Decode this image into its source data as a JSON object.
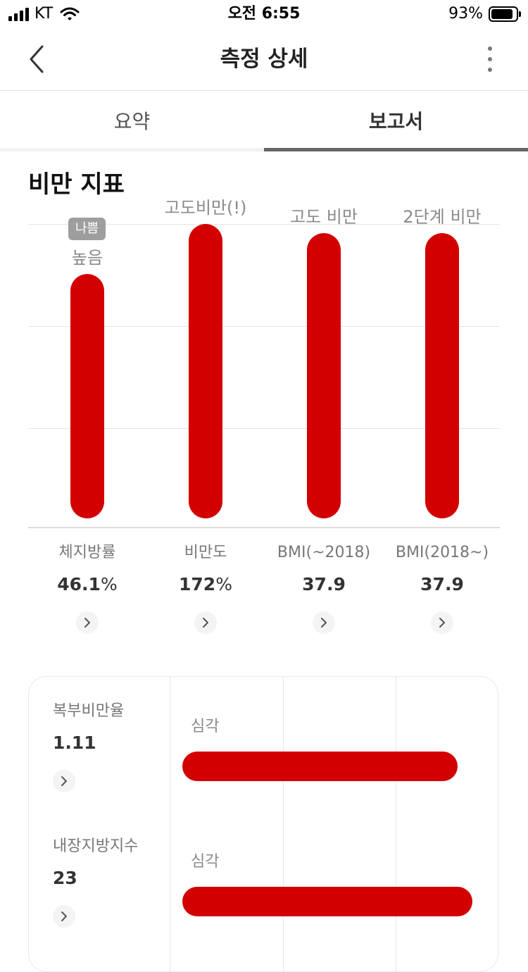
{
  "status_bar": {
    "carrier": "KT",
    "time": "오전 6:55",
    "battery": "93%",
    "battery_level": 0.93
  },
  "nav": {
    "title": "측정 상세"
  },
  "tabs": [
    {
      "label": "요약",
      "active": false
    },
    {
      "label": "보고서",
      "active": true
    }
  ],
  "section": {
    "title": "비만 지표"
  },
  "chart_data": {
    "type": "bar",
    "title": "비만 지표",
    "categories": [
      "체지방률",
      "비만도",
      "BMI(~2018)",
      "BMI(2018~)"
    ],
    "values": [
      "46.1",
      "172",
      "37.9",
      "37.9"
    ],
    "units": [
      "%",
      "%",
      "",
      ""
    ],
    "levels": [
      0.83,
      1.0,
      0.97,
      0.97
    ],
    "statuses": [
      "높음",
      "고도비만(!)",
      "고도 비만",
      "2단계 비만"
    ],
    "badges": [
      "나쁨",
      "",
      "",
      ""
    ],
    "color": "#d20000"
  },
  "details": [
    {
      "label": "복부비만율",
      "value": "1.11",
      "status": "심각",
      "level": 0.93
    },
    {
      "label": "내장지방지수",
      "value": "23",
      "status": "심각",
      "level": 0.98
    }
  ],
  "colors": {
    "accent": "#d20000",
    "badge": "#9e9e9e"
  },
  "icons": {
    "back": "chevron-left-icon",
    "more": "more-vertical-icon",
    "detail": "chevron-right-icon"
  }
}
